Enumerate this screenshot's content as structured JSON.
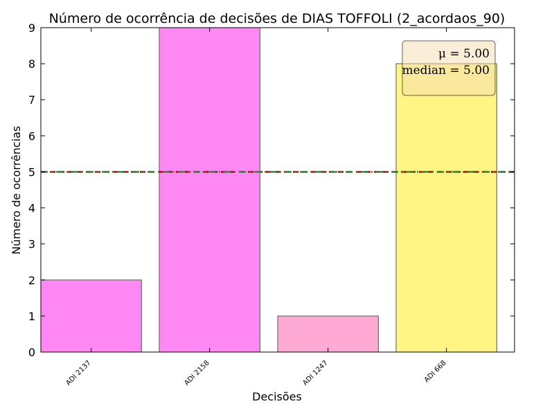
{
  "chart_data": {
    "type": "bar",
    "title": "Número de ocorrência de decisões de DIAS TOFFOLI (2_acordaos_90)",
    "xlabel": "Decisões",
    "ylabel": "Número de ocorrências",
    "categories": [
      "ADI 2137",
      "ADI 2158",
      "ADI 1247",
      "ADI 668"
    ],
    "values": [
      2,
      9,
      1,
      8
    ],
    "bar_colors": [
      "#ff88f5",
      "#ff88f5",
      "#ffaad4",
      "#fff585"
    ],
    "ylim": [
      0,
      9
    ],
    "yticks": [
      "0",
      "1",
      "2",
      "3",
      "4",
      "5",
      "6",
      "7",
      "8",
      "9"
    ],
    "grid": false,
    "reference_lines": [
      {
        "value": 5,
        "color": "#cc0000",
        "style": "dashed"
      },
      {
        "value": 5,
        "color": "#338a33",
        "style": "dash-dot"
      }
    ],
    "stats_box": {
      "placement": "top-right",
      "mean_text": "μ = 5.00",
      "median_text": "median = 5.00",
      "background": "#f5deb3"
    }
  }
}
